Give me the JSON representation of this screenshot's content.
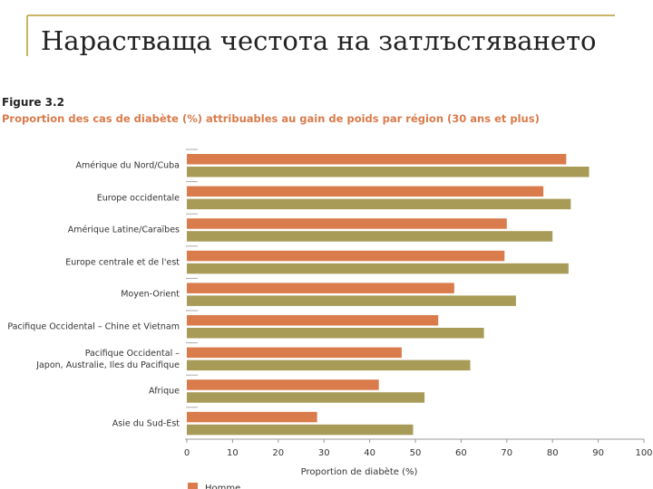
{
  "slide_title": "Нарастваща честота на затлъстяването",
  "chart_data": {
    "type": "hbar",
    "figure_label": "Figure 3.2",
    "title": "Proportion des cas de diabète (%) attribuables au gain de poids par région (30 ans et plus)",
    "categories": [
      "Amérique du Nord/Cuba",
      "Europe occidentale",
      "Amérique Latine/Caraïbes",
      "Europe centrale et de l'est",
      "Moyen-Orient",
      "Pacifique Occidental – Chine et Vietnam",
      "Pacifique Occidental –\nJapon, Australie, Iles du Pacifique",
      "Afrique",
      "Asie du Sud-Est"
    ],
    "series": [
      {
        "name": "Homme",
        "color": "#d97b4b",
        "values": [
          83,
          78,
          70,
          69.5,
          58.5,
          55,
          47,
          42,
          28.5
        ]
      },
      {
        "color": "#a89b58",
        "values": [
          88,
          84,
          80,
          83.5,
          72,
          65,
          62,
          52,
          49.5
        ]
      }
    ],
    "xlim": [
      0,
      100
    ],
    "xticks": [
      0,
      10,
      20,
      30,
      40,
      50,
      60,
      70,
      80,
      90,
      100
    ],
    "xlabel": "Proportion de diabète (%)",
    "legend": "bottom"
  }
}
